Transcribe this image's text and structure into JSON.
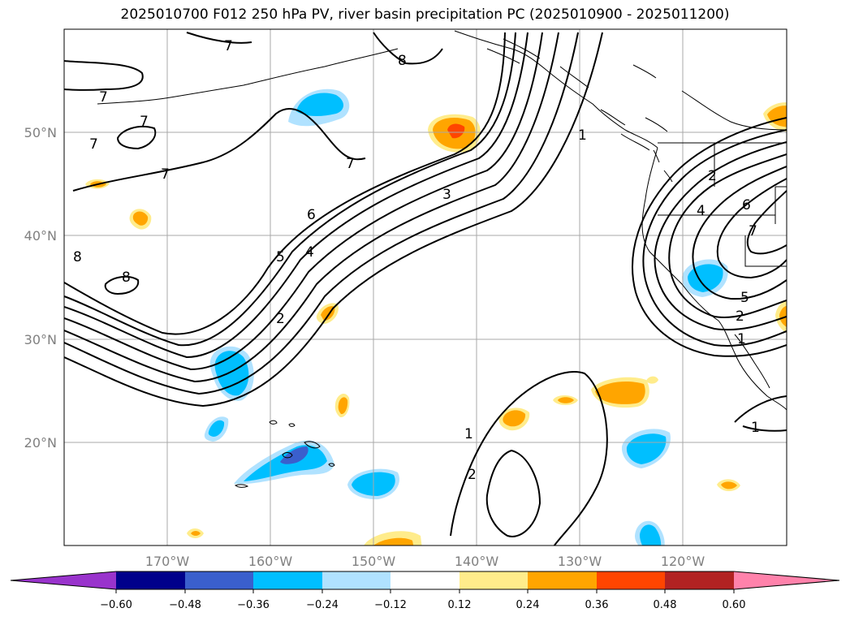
{
  "title": "2025010700 F012 250 hPa PV, river basin precipitation PC (2025010900 - 2025011200)",
  "map": {
    "projection": "lat-lon",
    "lon_range": [
      -180,
      -110
    ],
    "lat_range": [
      10,
      60
    ],
    "gridlines": true,
    "lat_labels": [
      "50°N",
      "40°N",
      "30°N",
      "20°N"
    ],
    "lon_labels": [
      "170°W",
      "160°W",
      "150°W",
      "140°W",
      "130°W",
      "120°W"
    ]
  },
  "pv_contour_labels": {
    "k7a": "7",
    "k7b": "7",
    "k7c": "7",
    "k7d": "7",
    "k7e": "7",
    "k8a": "8",
    "k8b": "8",
    "k8c": "8",
    "k1a": "1",
    "k1b": "1",
    "k1c": "1",
    "k2a": "2",
    "k2b": "2",
    "k3": "3",
    "k4": "4",
    "k5": "5",
    "k6": "6",
    "kEa": "2",
    "kEb": "4",
    "kEc": "6",
    "kEd": "7",
    "kEe": "5",
    "kEf": "2",
    "kEg": "1"
  },
  "colorbar": {
    "ticks": [
      "−0.60",
      "−0.48",
      "−0.36",
      "−0.24",
      "−0.12",
      "0.12",
      "0.24",
      "0.36",
      "0.48",
      "0.60"
    ],
    "colors": [
      "#9933cc",
      "#00008b",
      "#3a5fcd",
      "#00bfff",
      "#b0e2ff",
      "#ffffff",
      "#ffec8b",
      "#ffa500",
      "#ff4500",
      "#b22222",
      "#ff82ab"
    ],
    "extend": "both"
  }
}
